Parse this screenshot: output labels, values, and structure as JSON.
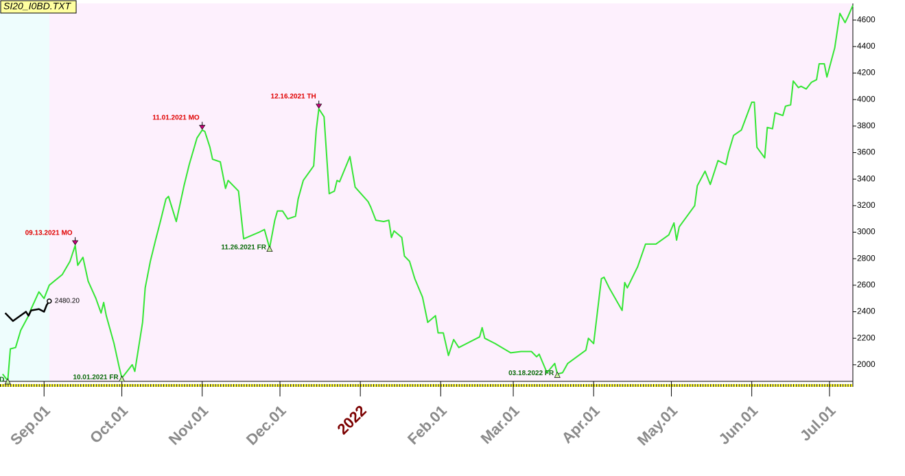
{
  "chart_data": {
    "type": "line",
    "title": "SI20_I0BD.TXT",
    "xlim": [
      0,
      329
    ],
    "ylim": [
      1875,
      4725
    ],
    "yticks": [
      2000,
      2200,
      2400,
      2600,
      2800,
      3000,
      3200,
      3400,
      3600,
      3800,
      4000,
      4200,
      4400,
      4600
    ],
    "xticks": [
      {
        "value": 17,
        "label": "Sep.01"
      },
      {
        "value": 47,
        "label": "Oct.01"
      },
      {
        "value": 78,
        "label": "Nov.01"
      },
      {
        "value": 108,
        "label": "Dec.01"
      },
      {
        "value": 139,
        "label": "2022",
        "color": "#7b0000"
      },
      {
        "value": 170,
        "label": "Feb.01"
      },
      {
        "value": 198,
        "label": "Mar.01"
      },
      {
        "value": 229,
        "label": "Apr.01"
      },
      {
        "value": 259,
        "label": "May.01"
      },
      {
        "value": 290,
        "label": "Jun.01"
      },
      {
        "value": 320,
        "label": "Jul.01"
      }
    ],
    "series": [
      {
        "color": "#33e633",
        "x": [
          1,
          3,
          4,
          6,
          8,
          11,
          12,
          15,
          17,
          19,
          24,
          27,
          29,
          30,
          32,
          34,
          37,
          39,
          40,
          41,
          44,
          46,
          47,
          51,
          52,
          55,
          56,
          58,
          60,
          62,
          64,
          65,
          68,
          71,
          73,
          76,
          78,
          79,
          81,
          82,
          85,
          87,
          88,
          92,
          94,
          100,
          102,
          104,
          106,
          107,
          109,
          111,
          114,
          115,
          117,
          121,
          122,
          123,
          125,
          127,
          129,
          130,
          131,
          135,
          137,
          142,
          143,
          145,
          148,
          150,
          151,
          152,
          155,
          156,
          158,
          160,
          163,
          165,
          168,
          169,
          171,
          173,
          175,
          177,
          180,
          185,
          186,
          187,
          191,
          197,
          201,
          205,
          207,
          208,
          211,
          214,
          215,
          217,
          219,
          226,
          227,
          229,
          232,
          233,
          235,
          240,
          241,
          242,
          246,
          249,
          253,
          258,
          260,
          261,
          262,
          268,
          269,
          272,
          274,
          277,
          280,
          281,
          283,
          286,
          290,
          291,
          292,
          295,
          296,
          298,
          299,
          302,
          303,
          305,
          306,
          308,
          309,
          311,
          313,
          315,
          316,
          318,
          319,
          322,
          324,
          326,
          327,
          329
        ],
        "values": [
          1930,
          1880,
          2120,
          2130,
          2260,
          2370,
          2420,
          2550,
          2500,
          2600,
          2680,
          2780,
          2900,
          2750,
          2810,
          2630,
          2500,
          2390,
          2470,
          2370,
          2160,
          1980,
          1900,
          2000,
          1950,
          2320,
          2580,
          2780,
          2940,
          3090,
          3250,
          3270,
          3080,
          3350,
          3510,
          3710,
          3770,
          3760,
          3640,
          3550,
          3530,
          3330,
          3390,
          3310,
          2950,
          3000,
          3020,
          2880,
          3090,
          3160,
          3160,
          3100,
          3120,
          3250,
          3390,
          3500,
          3770,
          3930,
          3870,
          3290,
          3310,
          3390,
          3380,
          3570,
          3340,
          3230,
          3190,
          3090,
          3080,
          3090,
          2960,
          3010,
          2960,
          2820,
          2780,
          2650,
          2510,
          2320,
          2370,
          2240,
          2240,
          2070,
          2190,
          2130,
          2160,
          2210,
          2280,
          2200,
          2160,
          2090,
          2100,
          2100,
          2060,
          2080,
          1940,
          2010,
          1930,
          1940,
          2010,
          2110,
          2200,
          2160,
          2650,
          2660,
          2580,
          2410,
          2620,
          2580,
          2740,
          2910,
          2910,
          2980,
          3070,
          2940,
          3040,
          3200,
          3350,
          3460,
          3360,
          3540,
          3510,
          3600,
          3730,
          3770,
          3980,
          3980,
          3640,
          3560,
          3790,
          3780,
          3900,
          3880,
          3950,
          3960,
          4140,
          4090,
          4100,
          4080,
          4130,
          4150,
          4270,
          4270,
          4170,
          4390,
          4650,
          4580,
          4620,
          4710
        ]
      },
      {
        "color": "#000000",
        "x": [
          2,
          5,
          10,
          11,
          12,
          15,
          17,
          18,
          19
        ],
        "values": [
          2390,
          2330,
          2400,
          2370,
          2410,
          2420,
          2400,
          2450,
          2480.2
        ],
        "value_labels": [
          null,
          null,
          null,
          null,
          null,
          null,
          null,
          null,
          "2480.20"
        ]
      }
    ],
    "annotations": [
      {
        "text": "09.13.2021 MO",
        "x": 29,
        "y": 2900,
        "type": "peak"
      },
      {
        "text": "11.01.2021 MO",
        "x": 78,
        "y": 3770,
        "type": "peak"
      },
      {
        "text": "12.16.2021 TH",
        "x": 123,
        "y": 3930,
        "type": "peak"
      },
      {
        "text": "D",
        "x": 3,
        "y": 1880,
        "type": "trough"
      },
      {
        "text": "10.01.2021 FR",
        "x": 47,
        "y": 1900,
        "type": "trough"
      },
      {
        "text": "11.26.2021 FR",
        "x": 104,
        "y": 2880,
        "type": "trough"
      },
      {
        "text": "03.18.2022 FR",
        "x": 215,
        "y": 1930,
        "type": "trough"
      }
    ]
  }
}
